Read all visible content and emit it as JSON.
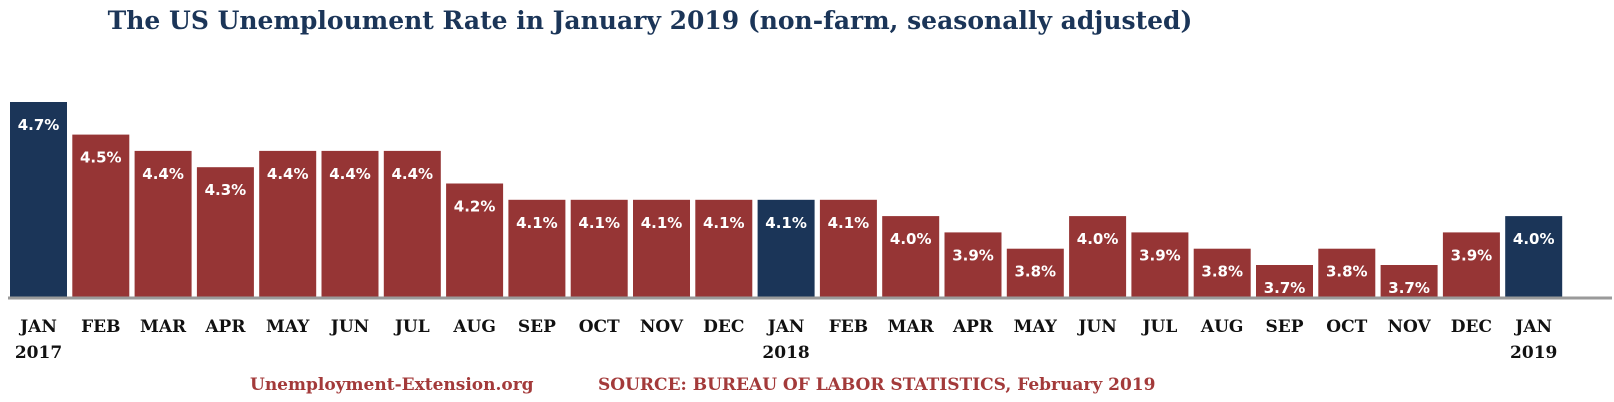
{
  "chart_data": {
    "type": "bar",
    "title": "The US Unemploument Rate in January 2019 (non-farm, seasonally adjusted)",
    "xlabel": "",
    "ylabel": "",
    "ylim": [
      0,
      4.7
    ],
    "grid": false,
    "categories": [
      "JAN",
      "FEB",
      "MAR",
      "APR",
      "MAY",
      "JUN",
      "JUL",
      "AUG",
      "SEP",
      "OCT",
      "NOV",
      "DEC",
      "JAN",
      "FEB",
      "MAR",
      "APR",
      "MAY",
      "JUN",
      "JUL",
      "AUG",
      "SEP",
      "OCT",
      "NOV",
      "DEC",
      "JAN"
    ],
    "year_labels": [
      "2017",
      "",
      "",
      "",
      "",
      "",
      "",
      "",
      "",
      "",
      "",
      "",
      "2018",
      "",
      "",
      "",
      "",
      "",
      "",
      "",
      "",
      "",
      "",
      "",
      "2019"
    ],
    "values": [
      4.7,
      4.5,
      4.4,
      4.3,
      4.4,
      4.4,
      4.4,
      4.2,
      4.1,
      4.1,
      4.1,
      4.1,
      4.1,
      4.1,
      4.0,
      3.9,
      3.8,
      4.0,
      3.9,
      3.8,
      3.7,
      3.8,
      3.7,
      3.9,
      4.0
    ],
    "value_labels": [
      "4.7%",
      "4.5%",
      "4.4%",
      "4.3%",
      "4.4%",
      "4.4%",
      "4.4%",
      "4.2%",
      "4.1%",
      "4.1%",
      "4.1%",
      "4.1%",
      "4.1%",
      "4.1%",
      "4.0%",
      "3.9%",
      "3.8%",
      "4.0%",
      "3.9%",
      "3.8%",
      "3.7%",
      "3.8%",
      "3.7%",
      "3.9%",
      "4.0%"
    ],
    "highlight": [
      true,
      false,
      false,
      false,
      false,
      false,
      false,
      false,
      false,
      false,
      false,
      false,
      true,
      false,
      false,
      false,
      false,
      false,
      false,
      false,
      false,
      false,
      false,
      false,
      true
    ],
    "colors": {
      "highlight": "#1b3558",
      "normal": "#963535",
      "axis": "#9a9a9a"
    }
  },
  "footer": {
    "site": "Unemployment-Extension.org",
    "source": "SOURCE: BUREAU OF LABOR STATISTICS, February 2019"
  }
}
